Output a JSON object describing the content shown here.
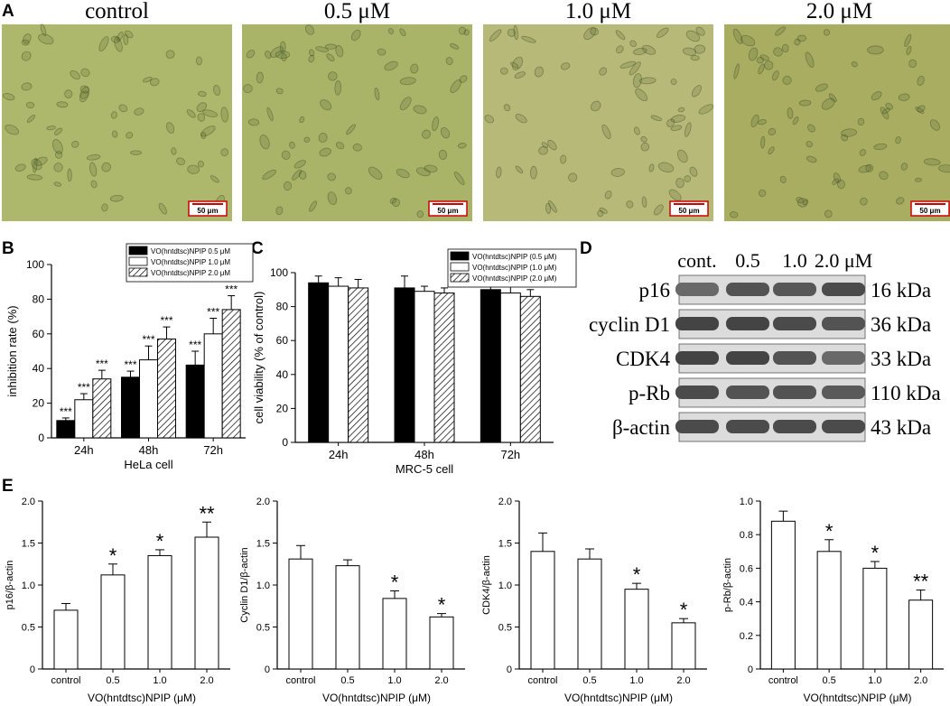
{
  "panel_letters": {
    "a": "A",
    "b": "B",
    "c": "C",
    "d": "D",
    "e": "E"
  },
  "micrographs": {
    "headers": [
      "control",
      "0.5 μM",
      "1.0 μM",
      "2.0 μM"
    ],
    "scale_bar": "50 μm",
    "tints": [
      "#aeb86c",
      "#a9b468",
      "#b7b978",
      "#a8ad62"
    ]
  },
  "colors": {
    "bar_black": "#000000",
    "bar_white": "#ffffff",
    "axis": "#000000"
  },
  "chart_data": [
    {
      "id": "B",
      "type": "bar",
      "categories": [
        "24h",
        "48h",
        "72h"
      ],
      "xlabel": "HeLa cell",
      "ylabel": "inhibition rate (%)",
      "ylim": [
        0,
        100
      ],
      "yticks": [
        0,
        20,
        40,
        60,
        80,
        100
      ],
      "legend_position": "top-right",
      "series": [
        {
          "name": "VO(hntdtsc)NPIP 0.5 μM",
          "fill": "black",
          "values": [
            10,
            35,
            42
          ],
          "errors": [
            1.5,
            3.5,
            8
          ],
          "sig": [
            "***",
            "***",
            "***"
          ]
        },
        {
          "name": "VO(hntdtsc)NPIP 1.0 μM",
          "fill": "white",
          "values": [
            22,
            45,
            60
          ],
          "errors": [
            3.5,
            8,
            9
          ],
          "sig": [
            "***",
            "***",
            "***"
          ]
        },
        {
          "name": "VO(hntdtsc)NPIP 2.0 μM",
          "fill": "hatch",
          "values": [
            34,
            57,
            74
          ],
          "errors": [
            5,
            7,
            8
          ],
          "sig": [
            "***",
            "***",
            "***"
          ]
        }
      ]
    },
    {
      "id": "C",
      "type": "bar",
      "categories": [
        "24h",
        "48h",
        "72h"
      ],
      "xlabel": "MRC-5 cell",
      "ylabel": "cell viability (% of control)",
      "ylim": [
        0,
        100
      ],
      "yticks": [
        0,
        20,
        40,
        60,
        80,
        100
      ],
      "legend_position": "top-right",
      "series": [
        {
          "name": "VO(hntdtsc)NPIP (0.5 μM)",
          "fill": "black",
          "values": [
            94,
            91,
            90
          ],
          "errors": [
            4,
            7,
            3
          ]
        },
        {
          "name": "VO(hntdtsc)NPIP (1.0 μM)",
          "fill": "white",
          "values": [
            92,
            89,
            88
          ],
          "errors": [
            5,
            3,
            6
          ]
        },
        {
          "name": "VO(hntdtsc)NPIP (2.0 μM)",
          "fill": "hatch",
          "values": [
            91,
            88,
            86
          ],
          "errors": [
            5,
            3,
            4
          ]
        }
      ]
    },
    {
      "id": "E1",
      "type": "bar",
      "categories": [
        "control",
        "0.5",
        "1.0",
        "2.0"
      ],
      "xlabel": "VO(hntdtsc)NPIP (μM)",
      "ylabel": "p16/β-actin",
      "ylim": [
        0,
        2.0
      ],
      "yticks": [
        "0",
        "0.5",
        "1.0",
        "1.5",
        "2.0"
      ],
      "values": [
        0.7,
        1.12,
        1.35,
        1.57
      ],
      "errors": [
        0.08,
        0.13,
        0.07,
        0.18
      ],
      "sig": [
        "",
        "*",
        "*",
        "**"
      ]
    },
    {
      "id": "E2",
      "type": "bar",
      "categories": [
        "control",
        "0.5",
        "1.0",
        "2.0"
      ],
      "xlabel": "VO(hntdtsc)NPIP (μM)",
      "ylabel": "Cyclin D1/β-actin",
      "ylim": [
        0,
        2.0
      ],
      "yticks": [
        "0",
        "0.5",
        "1.0",
        "1.5",
        "2.0"
      ],
      "values": [
        1.31,
        1.23,
        0.84,
        0.62
      ],
      "errors": [
        0.16,
        0.07,
        0.09,
        0.04
      ],
      "sig": [
        "",
        "",
        "*",
        "*"
      ]
    },
    {
      "id": "E3",
      "type": "bar",
      "categories": [
        "control",
        "0.5",
        "1.0",
        "2.0"
      ],
      "xlabel": "VO(hntdtsc)NPIP (μM)",
      "ylabel": "CDK4/β-actin",
      "ylim": [
        0,
        2.0
      ],
      "yticks": [
        "0",
        "0.5",
        "1.0",
        "1.5",
        "2.0"
      ],
      "values": [
        1.4,
        1.31,
        0.95,
        0.55
      ],
      "errors": [
        0.22,
        0.12,
        0.07,
        0.05
      ],
      "sig": [
        "",
        "",
        "*",
        "*"
      ]
    },
    {
      "id": "E4",
      "type": "bar",
      "categories": [
        "control",
        "0.5",
        "1.0",
        "2.0"
      ],
      "xlabel": "VO(hntdtsc)NPIP (μM)",
      "ylabel": "p-Rb/β-actin",
      "ylim": [
        0,
        1.0
      ],
      "yticks": [
        "0",
        "0.2",
        "0.4",
        "0.6",
        "0.8",
        "1.0"
      ],
      "values": [
        0.88,
        0.7,
        0.6,
        0.41
      ],
      "errors": [
        0.06,
        0.07,
        0.04,
        0.06
      ],
      "sig": [
        "",
        "*",
        "*",
        "**"
      ]
    }
  ],
  "western_blot": {
    "lanes": [
      "cont.",
      "0.5",
      "1.0",
      "2.0 μM"
    ],
    "rows": [
      {
        "protein": "p16",
        "size": "16 kDa",
        "intensity": [
          0.7,
          0.85,
          0.82,
          0.9
        ]
      },
      {
        "protein": "cyclin D1",
        "size": "36 kDa",
        "intensity": [
          0.95,
          0.95,
          0.9,
          0.85
        ]
      },
      {
        "protein": "CDK4",
        "size": "33 kDa",
        "intensity": [
          0.95,
          0.95,
          0.85,
          0.7
        ]
      },
      {
        "protein": "p-Rb",
        "size": "110 kDa",
        "intensity": [
          0.9,
          0.85,
          0.85,
          0.8
        ]
      },
      {
        "protein": "β-actin",
        "size": "43 kDa",
        "intensity": [
          0.9,
          0.9,
          0.9,
          0.9
        ]
      }
    ]
  }
}
